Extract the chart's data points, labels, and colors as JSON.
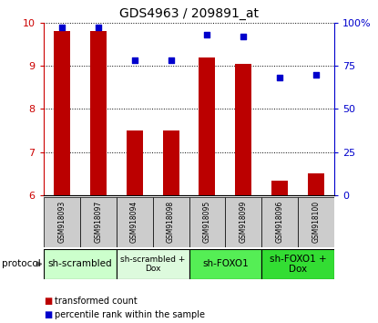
{
  "title": "GDS4963 / 209891_at",
  "samples": [
    "GSM918093",
    "GSM918097",
    "GSM918094",
    "GSM918098",
    "GSM918095",
    "GSM918099",
    "GSM918096",
    "GSM918100"
  ],
  "transformed_counts": [
    9.8,
    9.8,
    7.5,
    7.5,
    9.2,
    9.05,
    6.35,
    6.5
  ],
  "percentile_ranks": [
    97,
    97,
    78,
    78,
    93,
    92,
    68,
    70
  ],
  "ylim_left": [
    6,
    10
  ],
  "ylim_right": [
    0,
    100
  ],
  "yticks_left": [
    6,
    7,
    8,
    9,
    10
  ],
  "yticks_right": [
    0,
    25,
    50,
    75,
    100
  ],
  "right_tick_labels": [
    "0",
    "25",
    "50",
    "75",
    "100%"
  ],
  "groups": [
    {
      "label": "sh-scrambled",
      "start": 0,
      "end": 2,
      "color": "#ccffcc",
      "fontsize": 7.5
    },
    {
      "label": "sh-scrambled +\nDox",
      "start": 2,
      "end": 4,
      "color": "#ddfadd",
      "fontsize": 6.5
    },
    {
      "label": "sh-FOXO1",
      "start": 4,
      "end": 6,
      "color": "#55ee55",
      "fontsize": 7.5
    },
    {
      "label": "sh-FOXO1 +\nDox",
      "start": 6,
      "end": 8,
      "color": "#33dd33",
      "fontsize": 7.5
    }
  ],
  "bar_color": "#bb0000",
  "dot_color": "#0000cc",
  "bar_width": 0.45,
  "grid_color": "#000000",
  "bg_color": "#ffffff",
  "sample_bg_color": "#cccccc",
  "protocol_arrow_color": "#666666",
  "left_tick_color": "#cc0000",
  "right_tick_color": "#0000cc",
  "title_fontsize": 10
}
